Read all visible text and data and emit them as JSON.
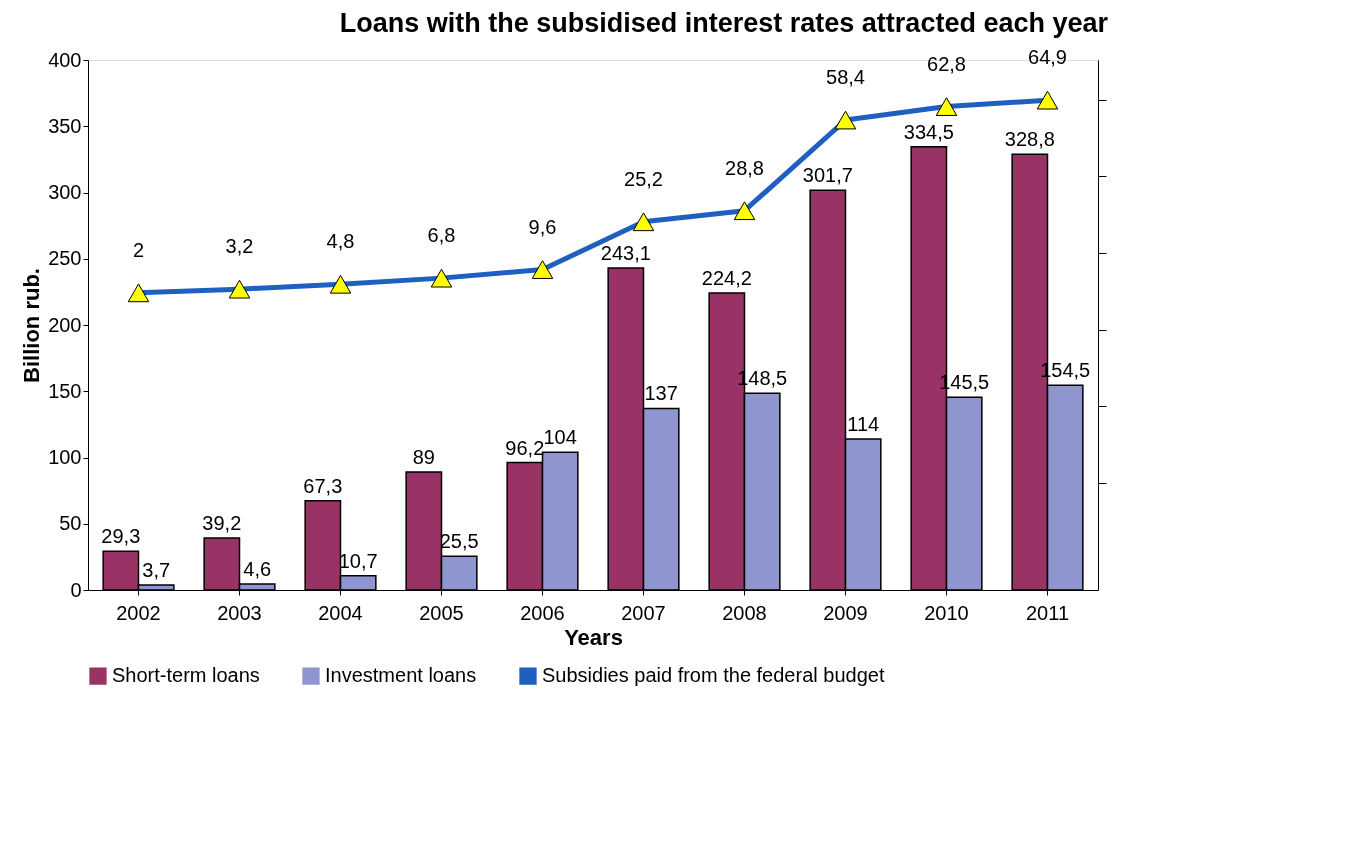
{
  "chart_data": {
    "type": "bar",
    "title": "Loans with the subsidised interest rates attracted each year",
    "xlabel": "Years",
    "ylabel": "Billion rub.",
    "categories": [
      "2002",
      "2003",
      "2004",
      "2005",
      "2006",
      "2007",
      "2008",
      "2009",
      "2010",
      "2011"
    ],
    "series": [
      {
        "name": "Short-term loans",
        "color": "#993366",
        "values": [
          29.3,
          39.2,
          67.3,
          89,
          96.2,
          243.1,
          224.2,
          301.7,
          334.5,
          328.8
        ],
        "value_labels": [
          "29,3",
          "39,2",
          "67,3",
          "89",
          "96,2",
          "243,1",
          "224,2",
          "301,7",
          "334,5",
          "328,8"
        ]
      },
      {
        "name": "Investment loans",
        "color": "#8f96cf",
        "values": [
          3.7,
          4.6,
          10.7,
          25.5,
          104,
          137,
          148.5,
          114,
          145.5,
          154.5
        ],
        "value_labels": [
          "3,7",
          "4,6",
          "10,7",
          "25,5",
          "104",
          "137",
          "148,5",
          "114",
          "145,5",
          "154,5"
        ]
      },
      {
        "name": "Subsidies paid from the federal budget",
        "type": "line",
        "axis": "y2",
        "color": "#1f5fbf",
        "marker": "triangle",
        "values": [
          2,
          3.2,
          4.8,
          6.8,
          9.6,
          25.2,
          28.8,
          58.4,
          62.8,
          64.9
        ],
        "value_labels": [
          "2",
          "3,2",
          "4,8",
          "6,8",
          "9,6",
          "25,2",
          "28,8",
          "58,4",
          "62,8",
          "64,9"
        ]
      }
    ],
    "ylim": [
      0,
      400
    ],
    "yticks": [
      0,
      50,
      100,
      150,
      200,
      250,
      300,
      350,
      400
    ],
    "y2lim": [
      -95,
      78
    ],
    "y2ticks": [
      {
        "value": -60,
        "label": null
      },
      {
        "value": -35,
        "label": null
      },
      {
        "value": -10,
        "label": null
      },
      {
        "value": 15,
        "label": null
      },
      {
        "value": 40,
        "label": null
      },
      {
        "value": 65,
        "label": null
      }
    ],
    "grid": false,
    "legend": "bottom"
  }
}
